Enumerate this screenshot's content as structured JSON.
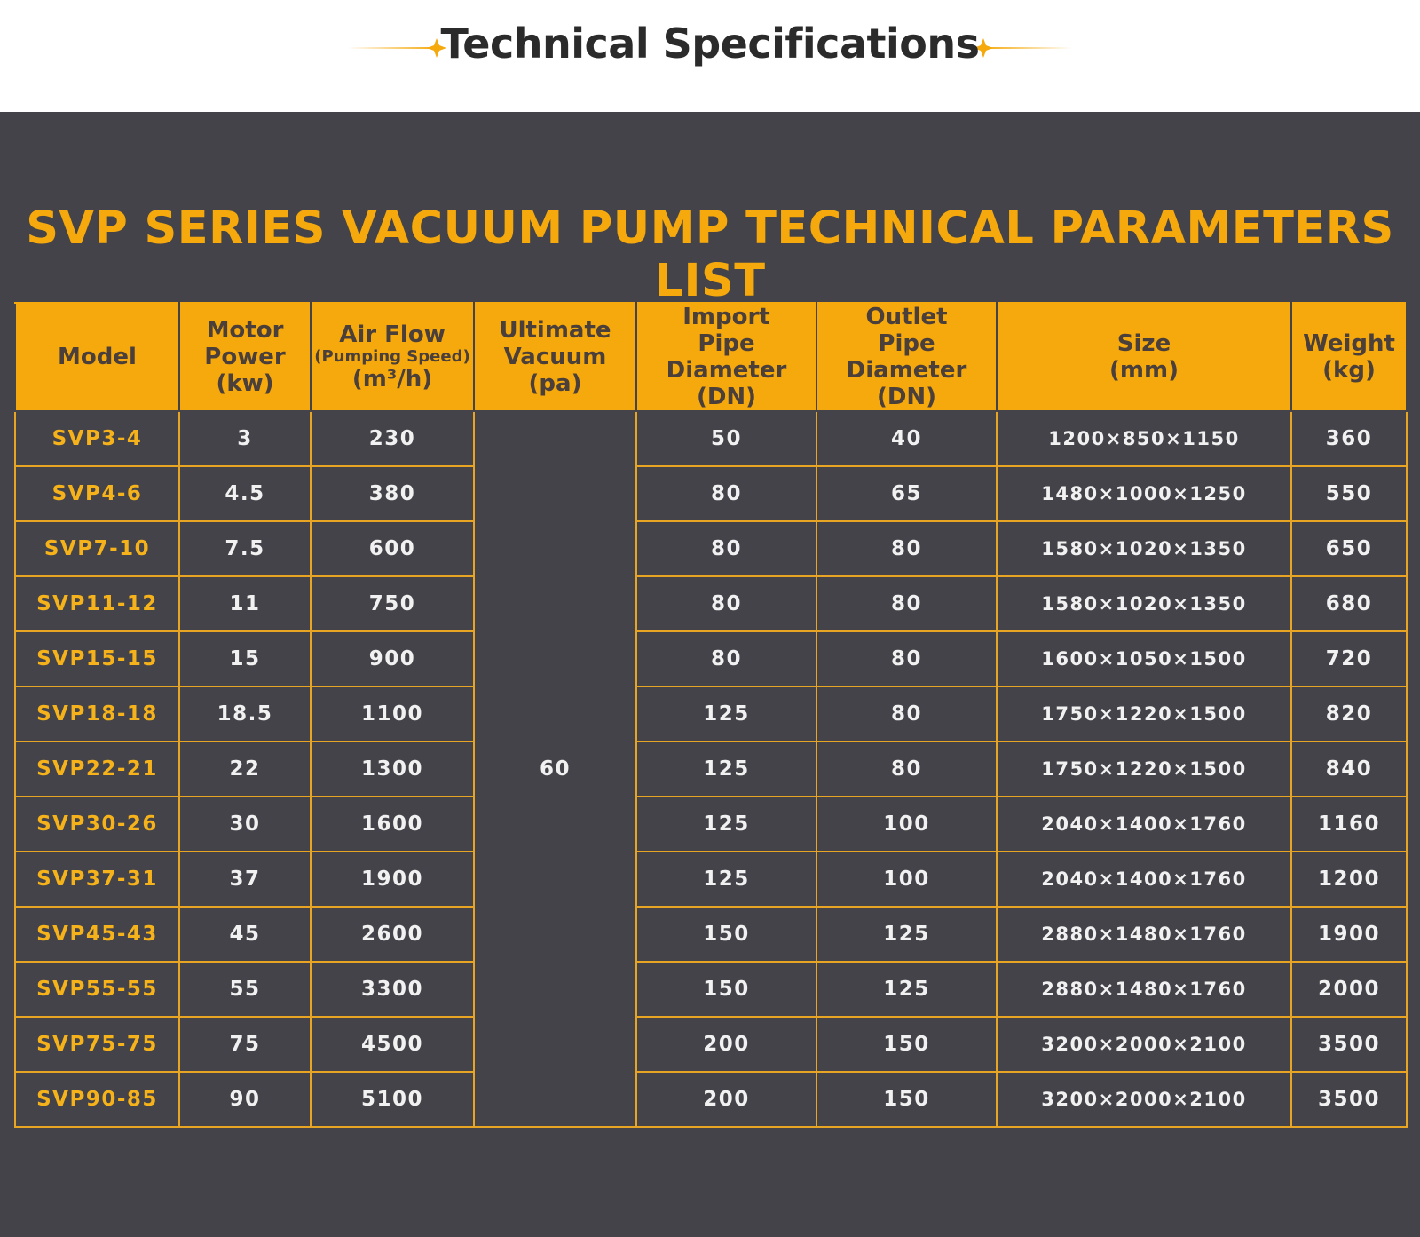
{
  "header": {
    "title": "Technical Specifications"
  },
  "table": {
    "title": "SVP SERIES VACUUM PUMP TECHNICAL PARAMETERS LIST",
    "columns": [
      {
        "lines": [
          "Model"
        ]
      },
      {
        "lines": [
          "Motor",
          "Power",
          "(kw)"
        ]
      },
      {
        "lines": [
          "Air Flow",
          "(Pumping Speed)",
          "(m³/h)"
        ]
      },
      {
        "lines": [
          "Ultimate",
          "Vacuum",
          "(pa)"
        ]
      },
      {
        "lines": [
          "Import",
          "Pipe Diameter",
          "(DN)"
        ]
      },
      {
        "lines": [
          "Outlet",
          "Pipe Diameter",
          "(DN)"
        ]
      },
      {
        "lines": [
          "Size",
          "(mm)"
        ]
      },
      {
        "lines": [
          "Weight",
          "(kg)"
        ]
      }
    ],
    "vacuum": "60",
    "rows": [
      [
        "SVP3-4",
        "3",
        "230",
        "50",
        "40",
        "1200×850×1150",
        "360"
      ],
      [
        "SVP4-6",
        "4.5",
        "380",
        "80",
        "65",
        "1480×1000×1250",
        "550"
      ],
      [
        "SVP7-10",
        "7.5",
        "600",
        "80",
        "80",
        "1580×1020×1350",
        "650"
      ],
      [
        "SVP11-12",
        "11",
        "750",
        "80",
        "80",
        "1580×1020×1350",
        "680"
      ],
      [
        "SVP15-15",
        "15",
        "900",
        "80",
        "80",
        "1600×1050×1500",
        "720"
      ],
      [
        "SVP18-18",
        "18.5",
        "1100",
        "125",
        "80",
        "1750×1220×1500",
        "820"
      ],
      [
        "SVP22-21",
        "22",
        "1300",
        "125",
        "80",
        "1750×1220×1500",
        "840"
      ],
      [
        "SVP30-26",
        "30",
        "1600",
        "125",
        "100",
        "2040×1400×1760",
        "1160"
      ],
      [
        "SVP37-31",
        "37",
        "1900",
        "125",
        "100",
        "2040×1400×1760",
        "1200"
      ],
      [
        "SVP45-43",
        "45",
        "2600",
        "150",
        "125",
        "2880×1480×1760",
        "1900"
      ],
      [
        "SVP55-55",
        "55",
        "3300",
        "150",
        "125",
        "2880×1480×1760",
        "2000"
      ],
      [
        "SVP75-75",
        "75",
        "4500",
        "200",
        "150",
        "3200×2000×2100",
        "3500"
      ],
      [
        "SVP90-85",
        "90",
        "5100",
        "200",
        "150",
        "3200×2000×2100",
        "3500"
      ]
    ]
  }
}
